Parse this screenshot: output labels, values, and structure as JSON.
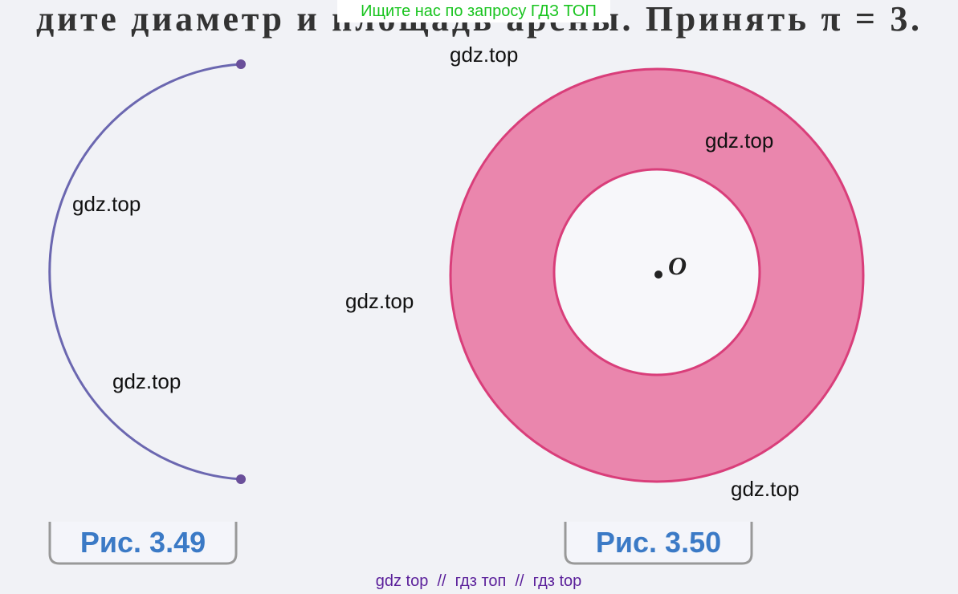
{
  "header": {
    "watermark": "Ищите нас по запросу ГДЗ ТОП",
    "text_line": "дите диаметр и площадь арены. Принять π = 3."
  },
  "figures": [
    {
      "caption": "Рис. 3.49"
    },
    {
      "caption": "Рис. 3.50",
      "point_label": "O"
    }
  ],
  "watermarks": [
    "gdz.top",
    "gdz.top",
    "gdz.top",
    "gdz.top",
    "gdz.top",
    "gdz.top"
  ],
  "footer": {
    "text": "gdz top  //  гдз топ  //  гдз top"
  }
}
